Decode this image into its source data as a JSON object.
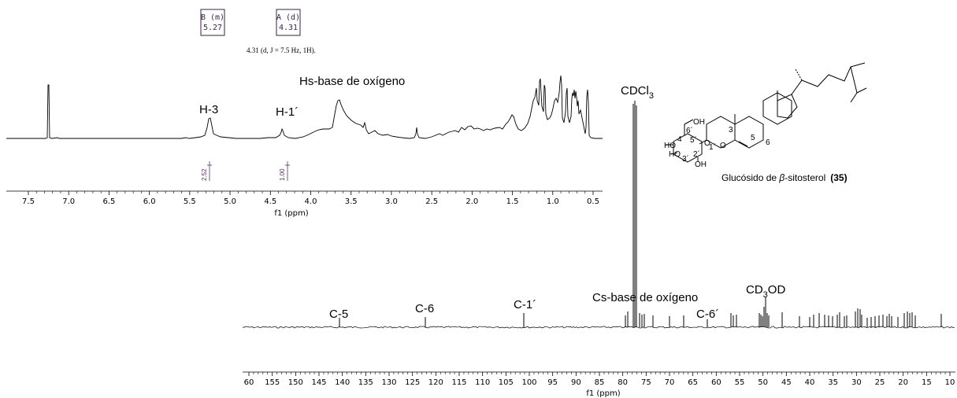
{
  "peak_boxes": [
    {
      "label": "B (m)",
      "shift": "5.27"
    },
    {
      "label": "A (d)",
      "shift": "4.31"
    }
  ],
  "coupling_text": "4.31 (d, J = 7.5 Hz, 1H).",
  "h_spectrum": {
    "title": "Hs-base de oxígeno",
    "annotations": [
      "H-3",
      "H-1´"
    ],
    "integrals": [
      "2.52",
      "1.00"
    ],
    "axis_title": "f1 (ppm)",
    "ticks": [
      "7.5",
      "7.0",
      "6.5",
      "6.0",
      "5.5",
      "5.0",
      "4.5",
      "4.0",
      "3.5",
      "3.0",
      "2.5",
      "2.0",
      "1.5",
      "1.0",
      "0.5"
    ]
  },
  "c_spectrum": {
    "solvent_label": "CDCl3",
    "title": "Cs-base de oxígeno",
    "solvent2_label": "CD3OD",
    "annotations": [
      "C-5",
      "C-6",
      "C-1´",
      "C-6´"
    ],
    "axis_title": "f1 (ppm)",
    "ticks": [
      "60",
      "155",
      "150",
      "145",
      "140",
      "135",
      "130",
      "125",
      "120",
      "115",
      "110",
      "105",
      "100",
      "95",
      "90",
      "85",
      "80",
      "75",
      "70",
      "65",
      "60",
      "55",
      "50",
      "45",
      "40",
      "35",
      "30",
      "25",
      "20",
      "15",
      "10"
    ]
  },
  "structure": {
    "atom_labels": [
      "OH",
      "6´",
      "O",
      "5´",
      "4´",
      "HO",
      "HO",
      "3´",
      "2´",
      "1´",
      "OH",
      "O",
      "3",
      "5",
      "6"
    ],
    "caption_prefix": "Glucósido de ",
    "caption_greek": "β",
    "caption_name": "-sitosterol",
    "caption_number": "(35)"
  }
}
